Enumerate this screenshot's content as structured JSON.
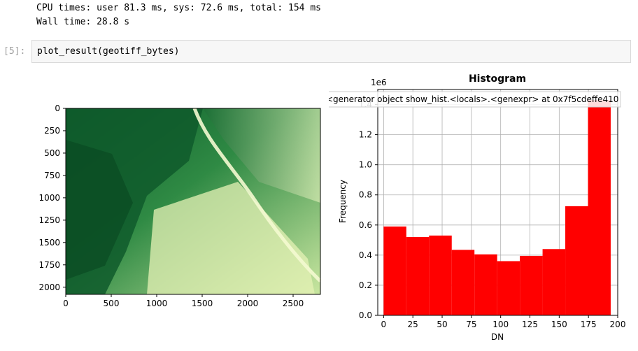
{
  "output": {
    "cpu_times": "CPU times: user 81.3 ms, sys: 72.6 ms, total: 154 ms",
    "wall_time": "Wall time: 28.8 s"
  },
  "cell": {
    "prompt": "[5]:",
    "code": "plot_result(geotiff_bytes)"
  },
  "chart_data": [
    {
      "type": "heatmap",
      "description_source": "raster image",
      "colormap": [
        "#00441b",
        "#1b7837",
        "#5aae61",
        "#a6dba0",
        "#f7fcb9"
      ],
      "xticks": [
        "0",
        "500",
        "1000",
        "1500",
        "2000",
        "2500"
      ],
      "yticks": [
        "0",
        "250",
        "500",
        "750",
        "1000",
        "1250",
        "1500",
        "1750",
        "2000"
      ],
      "xlim": [
        0,
        2800
      ],
      "ylim": [
        2080,
        0
      ]
    },
    {
      "type": "bar",
      "title": "Histogram",
      "xlabel": "DN",
      "ylabel": "Frequency",
      "offset_label": "1e6",
      "legend": "<generator object show_hist.<locals>.<genexpr> at 0x7f5cdeffe410",
      "legend_location": "top-right",
      "color": "#ff0000",
      "grid": true,
      "xlim": [
        -5,
        200
      ],
      "ylim": [
        0,
        1.5
      ],
      "xticks": [
        "0",
        "25",
        "50",
        "75",
        "100",
        "125",
        "150",
        "175",
        "200"
      ],
      "yticks": [
        "0.0",
        "0.2",
        "0.4",
        "0.6",
        "0.8",
        "1.0",
        "1.2",
        "1.4"
      ],
      "bin_edges": [
        0,
        19.4,
        38.8,
        58.2,
        77.6,
        97,
        116.4,
        135.8,
        155.2,
        174.6,
        194
      ],
      "values": [
        0.59,
        0.52,
        0.53,
        0.435,
        0.405,
        0.36,
        0.395,
        0.44,
        0.725,
        1.43
      ]
    }
  ]
}
